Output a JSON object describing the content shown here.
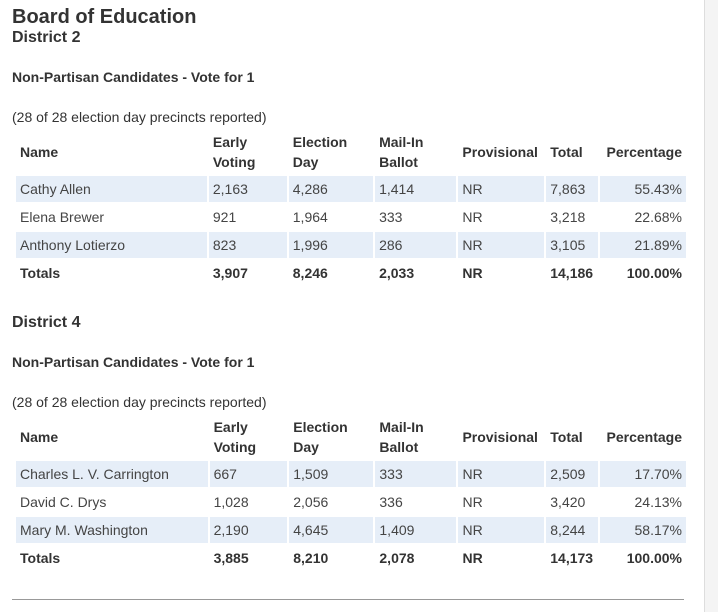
{
  "title": "Board of Education",
  "headers": {
    "name": "Name",
    "early": [
      "Early",
      "Voting"
    ],
    "eday": [
      "Election",
      "Day"
    ],
    "mail": [
      "Mail-In",
      "Ballot"
    ],
    "prov": "Provisional",
    "total": "Total",
    "pct": "Percentage"
  },
  "districts": [
    {
      "name": "District 2",
      "contest": "Non-Partisan Candidates - Vote for 1",
      "precincts": "(28 of 28 election day precincts reported)",
      "rows": [
        {
          "name": "Cathy Allen",
          "early": "2,163",
          "eday": "4,286",
          "mail": "1,414",
          "prov": "NR",
          "total": "7,863",
          "pct": "55.43%"
        },
        {
          "name": "Elena Brewer",
          "early": "921",
          "eday": "1,964",
          "mail": "333",
          "prov": "NR",
          "total": "3,218",
          "pct": "22.68%"
        },
        {
          "name": "Anthony Lotierzo",
          "early": "823",
          "eday": "1,996",
          "mail": "286",
          "prov": "NR",
          "total": "3,105",
          "pct": "21.89%"
        }
      ],
      "totals": {
        "name": "Totals",
        "early": "3,907",
        "eday": "8,246",
        "mail": "2,033",
        "prov": "NR",
        "total": "14,186",
        "pct": "100.00%"
      }
    },
    {
      "name": "District 4",
      "contest": "Non-Partisan Candidates - Vote for 1",
      "precincts": "(28 of 28 election day precincts reported)",
      "rows": [
        {
          "name": "Charles L. V. Carrington",
          "early": "667",
          "eday": "1,509",
          "mail": "333",
          "prov": "NR",
          "total": "2,509",
          "pct": "17.70%"
        },
        {
          "name": "David C. Drys",
          "early": "1,028",
          "eday": "2,056",
          "mail": "336",
          "prov": "NR",
          "total": "3,420",
          "pct": "24.13%"
        },
        {
          "name": "Mary M. Washington",
          "early": "2,190",
          "eday": "4,645",
          "mail": "1,409",
          "prov": "NR",
          "total": "8,244",
          "pct": "58.17%"
        }
      ],
      "totals": {
        "name": "Totals",
        "early": "3,885",
        "eday": "8,210",
        "mail": "2,078",
        "prov": "NR",
        "total": "14,173",
        "pct": "100.00%"
      }
    }
  ]
}
